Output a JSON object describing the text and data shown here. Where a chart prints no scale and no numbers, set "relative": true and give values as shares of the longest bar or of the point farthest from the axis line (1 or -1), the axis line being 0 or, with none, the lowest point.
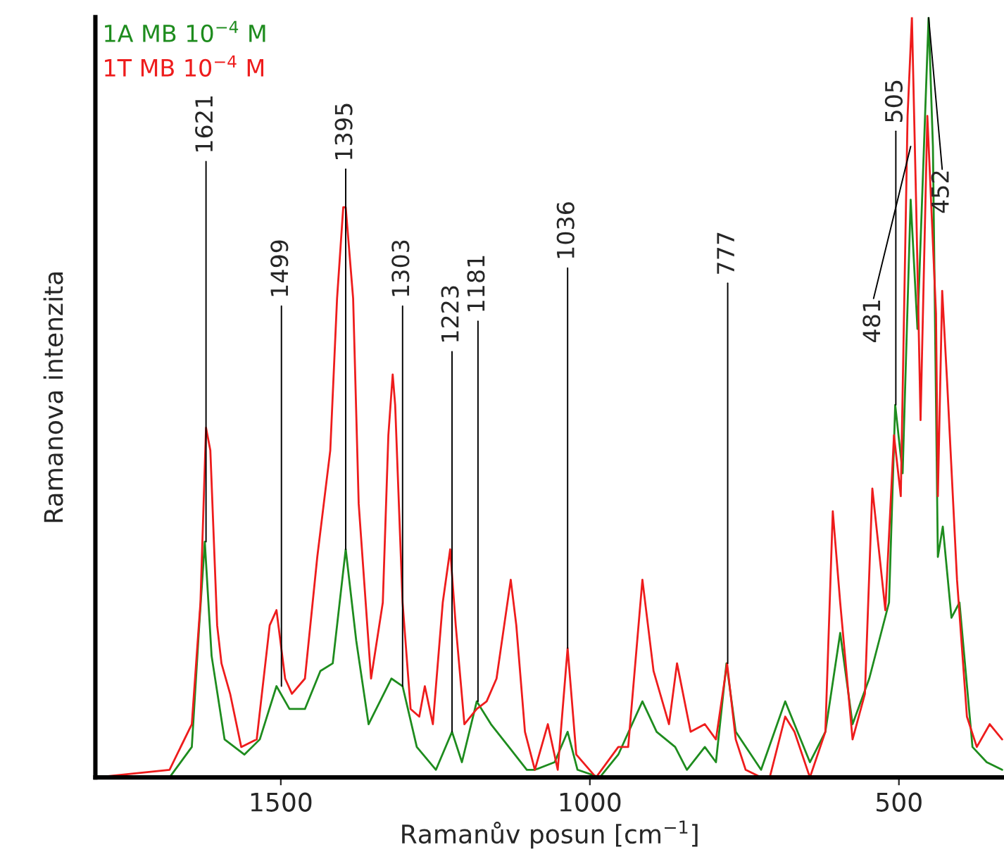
{
  "chart_data": {
    "type": "line",
    "relative": true,
    "xlabel": "Ramanův posun [cm$^{−1}$]",
    "ylabel": "Ramanova intenzita",
    "xlim": [
      1800,
      330
    ],
    "xticks": [
      1500,
      1000,
      500
    ],
    "grid": false,
    "legend": "top left",
    "marker": "none",
    "line_style": "solid",
    "series": [
      {
        "name": "1A MB 10$^{−4}$ M",
        "color": "#1e8c1e",
        "x": [
          1799,
          1680,
          1644,
          1632,
          1623,
          1612,
          1591,
          1559,
          1534,
          1507,
          1486,
          1461,
          1436,
          1416,
          1395,
          1378,
          1358,
          1321,
          1303,
          1280,
          1249,
          1223,
          1207,
          1183,
          1160,
          1131,
          1102,
          1089,
          1057,
          1036,
          1020,
          984,
          954,
          915,
          892,
          862,
          843,
          814,
          796,
          779,
          764,
          723,
          684,
          669,
          644,
          619,
          595,
          575,
          548,
          516,
          506,
          494,
          481,
          470,
          452,
          445,
          437,
          429,
          415,
          402,
          381,
          358,
          333
        ],
        "values": [
          0.0,
          0.0,
          0.04,
          0.2,
          0.31,
          0.16,
          0.05,
          0.03,
          0.05,
          0.12,
          0.09,
          0.09,
          0.14,
          0.15,
          0.3,
          0.18,
          0.07,
          0.13,
          0.12,
          0.04,
          0.01,
          0.06,
          0.02,
          0.1,
          0.07,
          0.04,
          0.01,
          0.01,
          0.02,
          0.06,
          0.01,
          0.0,
          0.03,
          0.1,
          0.06,
          0.04,
          0.01,
          0.04,
          0.02,
          0.15,
          0.06,
          0.01,
          0.1,
          0.07,
          0.02,
          0.06,
          0.19,
          0.07,
          0.13,
          0.23,
          0.49,
          0.4,
          0.76,
          0.59,
          1.0,
          0.83,
          0.29,
          0.33,
          0.21,
          0.23,
          0.04,
          0.02,
          0.01
        ]
      },
      {
        "name": "1T MB 10$^{−4}$ M",
        "color": "#ee1c1c",
        "x": [
          1799,
          1680,
          1644,
          1630,
          1621,
          1614,
          1603,
          1596,
          1582,
          1564,
          1539,
          1518,
          1507,
          1493,
          1482,
          1461,
          1441,
          1420,
          1409,
          1399,
          1395,
          1383,
          1374,
          1354,
          1335,
          1326,
          1319,
          1315,
          1303,
          1290,
          1276,
          1267,
          1254,
          1238,
          1226,
          1217,
          1203,
          1183,
          1167,
          1151,
          1128,
          1119,
          1105,
          1089,
          1068,
          1052,
          1036,
          1022,
          990,
          954,
          938,
          915,
          897,
          872,
          859,
          837,
          814,
          796,
          778,
          764,
          748,
          723,
          709,
          684,
          669,
          644,
          619,
          607,
          595,
          575,
          555,
          543,
          522,
          508,
          497,
          486,
          479,
          472,
          465,
          454,
          440,
          437,
          430,
          422,
          406,
          390,
          374,
          353,
          333
        ],
        "values": [
          0.0,
          0.01,
          0.07,
          0.23,
          0.46,
          0.43,
          0.2,
          0.15,
          0.11,
          0.04,
          0.05,
          0.2,
          0.22,
          0.13,
          0.11,
          0.13,
          0.29,
          0.43,
          0.63,
          0.75,
          0.75,
          0.63,
          0.36,
          0.13,
          0.23,
          0.45,
          0.53,
          0.49,
          0.23,
          0.09,
          0.08,
          0.12,
          0.07,
          0.23,
          0.3,
          0.2,
          0.07,
          0.09,
          0.1,
          0.13,
          0.26,
          0.2,
          0.06,
          0.01,
          0.07,
          0.01,
          0.17,
          0.03,
          0.0,
          0.04,
          0.04,
          0.26,
          0.14,
          0.07,
          0.15,
          0.06,
          0.07,
          0.05,
          0.15,
          0.05,
          0.01,
          0.0,
          0.0,
          0.08,
          0.06,
          0.0,
          0.06,
          0.35,
          0.23,
          0.05,
          0.11,
          0.38,
          0.22,
          0.45,
          0.37,
          0.87,
          1.0,
          0.75,
          0.47,
          0.87,
          0.61,
          0.37,
          0.64,
          0.52,
          0.26,
          0.08,
          0.04,
          0.07,
          0.05
        ]
      }
    ],
    "annotations": [
      {
        "text": "1621",
        "x": 1621,
        "y": 0.31
      },
      {
        "text": "1499",
        "x": 1499,
        "y": 0.12
      },
      {
        "text": "1395",
        "x": 1395,
        "y": 0.3
      },
      {
        "text": "1303",
        "x": 1303,
        "y": 0.12
      },
      {
        "text": "1223",
        "x": 1223,
        "y": 0.06
      },
      {
        "text": "1181",
        "x": 1181,
        "y": 0.1
      },
      {
        "text": "1036",
        "x": 1036,
        "y": 0.17
      },
      {
        "text": "777",
        "x": 777,
        "y": 0.15
      },
      {
        "text": "505",
        "x": 505,
        "y": 0.49
      },
      {
        "text": "481",
        "x": 481,
        "y": 0.83
      },
      {
        "text": "452",
        "x": 452,
        "y": 1.0
      }
    ]
  }
}
